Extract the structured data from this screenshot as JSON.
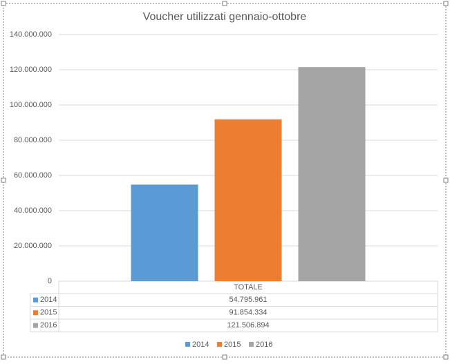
{
  "chart_data": {
    "type": "bar",
    "title": "Voucher  utilizzati gennaio-ottobre",
    "categories": [
      "TOTALE"
    ],
    "series": [
      {
        "name": "2014",
        "color": "#5b9bd5",
        "values": [
          54795961
        ],
        "value_labels": [
          "54.795.961"
        ]
      },
      {
        "name": "2015",
        "color": "#ed7d31",
        "values": [
          91854334
        ],
        "value_labels": [
          "91.854.334"
        ]
      },
      {
        "name": "2016",
        "color": "#a5a5a5",
        "values": [
          121506894
        ],
        "value_labels": [
          "121.506.894"
        ]
      }
    ],
    "ylim": [
      0,
      140000000
    ],
    "yticks": [
      0,
      {
        "value": 20000000,
        "label": "20.000.000"
      },
      {
        "value": 40000000,
        "label": "40.000.000"
      },
      {
        "value": 60000000,
        "label": "60.000.000"
      },
      {
        "value": 80000000,
        "label": "80.000.000"
      },
      {
        "value": 100000000,
        "label": "100.000.000"
      },
      {
        "value": 120000000,
        "label": "120.000.000"
      },
      {
        "value": 140000000,
        "label": "140.000.000"
      }
    ],
    "grid": true
  }
}
